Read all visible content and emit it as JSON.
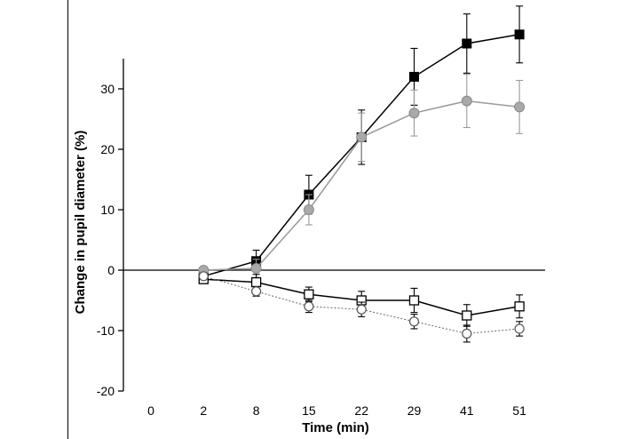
{
  "chart_data": {
    "type": "line",
    "xlabel": "Time (min)",
    "ylabel": "Change in pupil diameter (%)",
    "x_ticks": [
      "0",
      "2",
      "8",
      "15",
      "22",
      "29",
      "41",
      "51"
    ],
    "y_ticks": [
      30,
      20,
      10,
      0,
      -10,
      -20
    ],
    "ylim": [
      -20,
      35
    ],
    "grid": false,
    "zero_line": true,
    "series": [
      {
        "marker": "filled-square",
        "color": "#000000",
        "x": [
          "2",
          "8",
          "15",
          "22",
          "29",
          "41",
          "51"
        ],
        "values": [
          -1,
          1.5,
          12.5,
          22,
          32,
          37.5,
          39
        ],
        "errors": [
          0,
          1.8,
          3.2,
          4.5,
          4.7,
          4.9,
          4.7
        ]
      },
      {
        "marker": "filled-circle",
        "color": "#9a9a9a",
        "x": [
          "2",
          "8",
          "15",
          "22",
          "29",
          "41",
          "51"
        ],
        "values": [
          0,
          0.3,
          10,
          22,
          26,
          28,
          27
        ],
        "errors": [
          0,
          1.5,
          2.5,
          4.0,
          3.8,
          4.4,
          4.4
        ]
      },
      {
        "marker": "open-square",
        "color": "#000000",
        "x": [
          "2",
          "8",
          "15",
          "22",
          "29",
          "41",
          "51"
        ],
        "values": [
          -1.5,
          -2,
          -4,
          -5,
          -5,
          -7.5,
          -6
        ],
        "errors": [
          0,
          1.3,
          1.2,
          1.5,
          2.0,
          1.8,
          1.9
        ]
      },
      {
        "marker": "open-circle",
        "color": "#666666",
        "x": [
          "2",
          "8",
          "15",
          "22",
          "29",
          "41",
          "51"
        ],
        "values": [
          -1,
          -3.5,
          -6,
          -6.5,
          -8.5,
          -10.5,
          -9.7
        ],
        "errors": [
          0,
          0.8,
          1.0,
          1.2,
          1.2,
          1.4,
          1.2
        ]
      }
    ]
  }
}
